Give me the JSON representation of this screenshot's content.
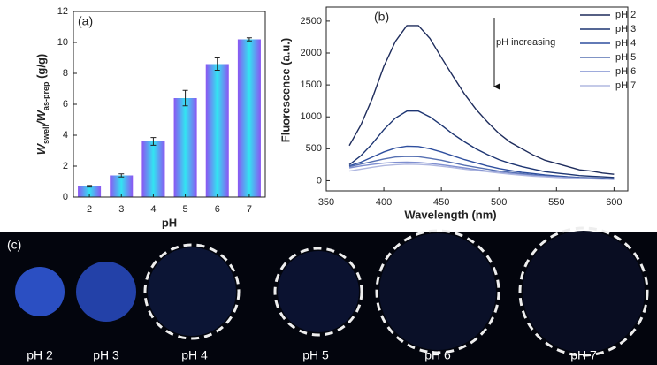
{
  "chart_data": [
    {
      "type": "bar",
      "panel_label": "(a)",
      "categories": [
        "2",
        "3",
        "4",
        "5",
        "6",
        "7"
      ],
      "values": [
        0.7,
        1.4,
        3.6,
        6.4,
        8.6,
        10.2
      ],
      "errors": [
        0.05,
        0.1,
        0.25,
        0.5,
        0.4,
        0.1
      ],
      "xlabel": "pH",
      "ylabel": {
        "main1": "W",
        "sub1": "swell",
        "main2": "/W",
        "sub2": "as-prep",
        "unit": "(g/g)"
      },
      "ylim": [
        0,
        12
      ],
      "yticks": [
        0,
        2,
        4,
        6,
        8,
        10,
        12
      ]
    },
    {
      "type": "line",
      "panel_label": "(b)",
      "arrow_label": "pH increasing",
      "xlabel": "Wavelength (nm)",
      "ylabel": "Fluorescence (a.u.)",
      "x": [
        370,
        380,
        390,
        400,
        410,
        420,
        430,
        440,
        450,
        460,
        470,
        480,
        490,
        500,
        510,
        520,
        530,
        540,
        550,
        560,
        570,
        580,
        590,
        600
      ],
      "series": [
        {
          "name": "pH 2",
          "color": "#1e2c5c",
          "values": [
            550,
            870,
            1290,
            1790,
            2180,
            2430,
            2430,
            2230,
            1930,
            1640,
            1360,
            1120,
            920,
            740,
            600,
            500,
            400,
            320,
            270,
            220,
            170,
            150,
            120,
            100
          ]
        },
        {
          "name": "pH 3",
          "color": "#1d3572",
          "values": [
            250,
            390,
            580,
            800,
            980,
            1090,
            1090,
            1000,
            870,
            730,
            610,
            500,
            410,
            330,
            270,
            220,
            180,
            140,
            120,
            100,
            80,
            70,
            60,
            50
          ]
        },
        {
          "name": "pH 4",
          "color": "#2f4f9e",
          "values": [
            230,
            290,
            370,
            450,
            510,
            540,
            535,
            500,
            450,
            390,
            330,
            280,
            230,
            190,
            160,
            130,
            110,
            90,
            75,
            60,
            50,
            45,
            38,
            30
          ]
        },
        {
          "name": "pH 5",
          "color": "#5670b2",
          "values": [
            220,
            260,
            300,
            340,
            370,
            380,
            375,
            350,
            320,
            280,
            240,
            210,
            180,
            150,
            130,
            110,
            90,
            75,
            60,
            50,
            45,
            40,
            32,
            25
          ]
        },
        {
          "name": "pH 6",
          "color": "#7f8fd0",
          "values": [
            200,
            230,
            255,
            275,
            288,
            290,
            285,
            270,
            250,
            225,
            200,
            175,
            150,
            130,
            110,
            95,
            80,
            65,
            55,
            45,
            38,
            32,
            26,
            20
          ]
        },
        {
          "name": "pH 7",
          "color": "#b0b8e0",
          "values": [
            150,
            180,
            210,
            235,
            250,
            258,
            255,
            245,
            225,
            205,
            180,
            160,
            140,
            120,
            100,
            85,
            70,
            60,
            50,
            42,
            35,
            30,
            25,
            20
          ]
        }
      ],
      "xlim": [
        350,
        612
      ],
      "xticks": [
        350,
        400,
        450,
        500,
        550,
        600
      ],
      "ylim": [
        -160,
        2720
      ],
      "yticks": [
        0,
        500,
        1000,
        1500,
        2000,
        2500
      ]
    }
  ],
  "photo": {
    "panel_label": "(c)",
    "labels": [
      "pH 2",
      "pH 3",
      "pH 4",
      "pH 5",
      "pH 6",
      "pH 7"
    ]
  }
}
